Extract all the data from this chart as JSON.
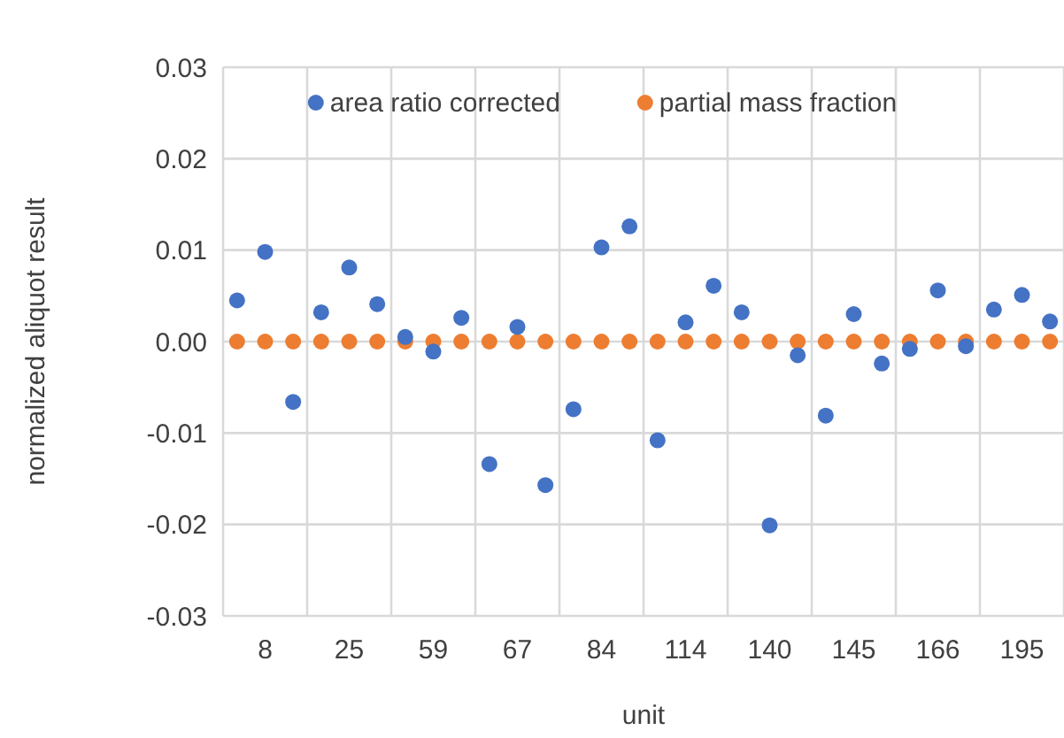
{
  "chart_data": {
    "type": "scatter",
    "xlabel": "unit",
    "ylabel": "normalized aliquot result",
    "categories": [
      null,
      "8",
      null,
      null,
      "25",
      null,
      null,
      "59",
      null,
      null,
      "67",
      null,
      null,
      "84",
      null,
      null,
      "114",
      null,
      null,
      "140",
      null,
      null,
      "145",
      null,
      null,
      "166",
      null,
      null,
      "195",
      null
    ],
    "series": [
      {
        "name": "area ratio corrected",
        "color": "#4472c4",
        "values": [
          0.0045,
          0.0098,
          -0.0066,
          0.0032,
          0.0081,
          0.0041,
          0.0005,
          -0.0011,
          0.0026,
          -0.0134,
          0.0016,
          -0.0157,
          -0.0074,
          0.0103,
          0.0126,
          -0.0108,
          0.0021,
          0.0061,
          0.0032,
          -0.0201,
          -0.0015,
          -0.0081,
          0.003,
          -0.0024,
          -0.0008,
          0.0056,
          -0.0005,
          0.0035,
          0.0051,
          0.0022
        ]
      },
      {
        "name": "partial mass fraction",
        "color": "#ed7d31",
        "values": [
          0,
          0,
          0,
          0,
          0,
          0,
          0,
          0,
          0,
          0,
          0,
          0,
          0,
          0,
          0,
          0,
          0,
          0,
          0,
          0,
          0,
          0,
          0,
          0,
          0,
          0,
          0,
          0,
          0,
          0
        ]
      }
    ],
    "ylim": [
      -0.03,
      0.03
    ],
    "yticks": [
      {
        "value": -0.03,
        "label": "-0.03"
      },
      {
        "value": -0.02,
        "label": "-0.02"
      },
      {
        "value": -0.01,
        "label": "-0.01"
      },
      {
        "value": 0,
        "label": "0.00"
      },
      {
        "value": 0.01,
        "label": "0.01"
      },
      {
        "value": 0.02,
        "label": "0.02"
      },
      {
        "value": 0.03,
        "label": "0.03"
      }
    ],
    "grid": true,
    "legend": "top",
    "marker": "circle"
  }
}
